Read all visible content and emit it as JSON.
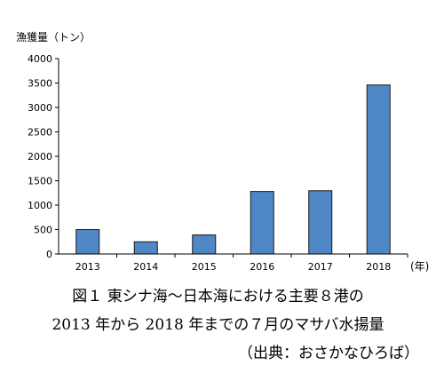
{
  "chart_data": {
    "type": "bar",
    "ylabel": "漁獲量（トン）",
    "x_unit": "(年)",
    "categories": [
      "2013",
      "2014",
      "2015",
      "2016",
      "2017",
      "2018"
    ],
    "values": [
      500,
      250,
      390,
      1280,
      1295,
      3460
    ],
    "ylim": [
      0,
      4000
    ],
    "yticks": [
      0,
      500,
      1000,
      1500,
      2000,
      2500,
      3000,
      3500,
      4000
    ],
    "bar_color": "#4F86C6",
    "bar_edge": "#1a1a1a",
    "grid": false,
    "legend": "none"
  },
  "caption": {
    "line1": "図１ 東シナ海～日本海における主要８港の",
    "line2": "2013 年から 2018 年までの７月のマサバ水揚量",
    "source": "（出典：おさかなひろば）"
  }
}
